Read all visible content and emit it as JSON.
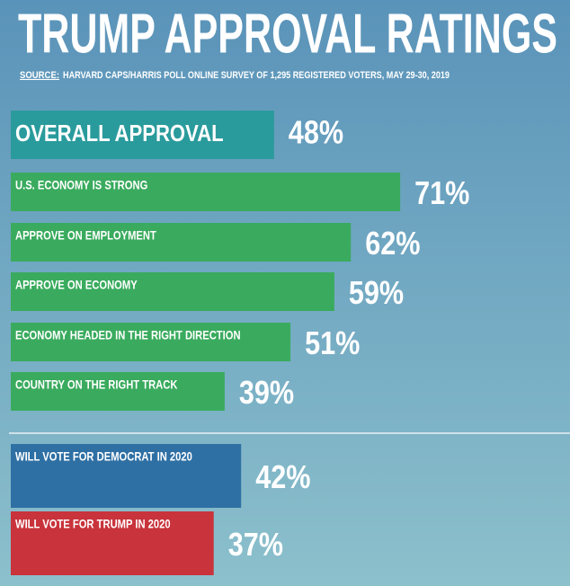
{
  "chart_data": {
    "type": "bar",
    "title": "TRUMP APPROVAL RATINGS",
    "source_label": "SOURCE:",
    "subtitle": "HARVARD CAPS/HARRIS POLL ONLINE SURVEY OF 1,295 REGISTERED VOTERS, MAY 29-30, 2019",
    "categories": [
      "OVERALL APPROVAL",
      "U.S. ECONOMY IS STRONG",
      "APPROVE ON EMPLOYMENT",
      "APPROVE ON ECONOMY",
      "ECONOMY HEADED IN THE RIGHT DIRECTION",
      "COUNTRY ON THE RIGHT TRACK",
      "WILL VOTE FOR DEMOCRAT IN 2020",
      "WILL VOTE FOR TRUMP IN 2020"
    ],
    "values": [
      48,
      71,
      62,
      59,
      51,
      39,
      42,
      37
    ],
    "value_labels": [
      "48%",
      "71%",
      "62%",
      "59%",
      "51%",
      "39%",
      "42%",
      "37%"
    ],
    "colors": [
      "#2a9b9c",
      "#3aab5e",
      "#3aab5e",
      "#3aab5e",
      "#3aab5e",
      "#3aab5e",
      "#2f70a4",
      "#c9333b"
    ]
  }
}
